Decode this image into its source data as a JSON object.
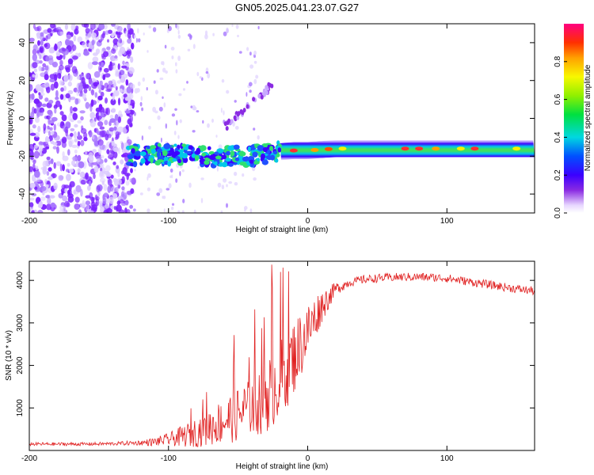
{
  "title": "GN05.2025.041.23.07.G27",
  "colors": {
    "spectrogram_base": "#7b2fff",
    "snr_line": "#e02020",
    "axis": "#000000"
  },
  "chart_data": [
    {
      "type": "heatmap",
      "name": "spectrogram",
      "xlabel": "Height of straight line (km)",
      "ylabel": "Frequency (Hz)",
      "xlim": [
        -200,
        163
      ],
      "ylim": [
        -50,
        50
      ],
      "xticks": [
        -200,
        -100,
        0,
        100
      ],
      "yticks": [
        -40,
        -20,
        0,
        20,
        40
      ],
      "colorbar": {
        "label": "Normalized spectral amplitude",
        "range": [
          0,
          1
        ],
        "ticks": [
          "0.0",
          "0.2",
          "0.4",
          "0.6",
          "0.8"
        ],
        "tick_values": [
          0.0,
          0.2,
          0.4,
          0.6,
          0.8
        ],
        "colormap": "rainbow"
      },
      "band": {
        "x": [
          -130,
          -110,
          -90,
          -70,
          -55,
          -40,
          -25,
          -10,
          0,
          20,
          50,
          80,
          100,
          130,
          163
        ],
        "y": [
          -20,
          -19,
          -19,
          -20,
          -20,
          -20,
          -18,
          -17,
          -17,
          -16,
          -16,
          -16,
          -16,
          -16,
          -16
        ]
      },
      "noise_region_x": [
        -200,
        -125
      ],
      "chirp": {
        "x": [
          -60,
          -25
        ],
        "y": [
          -5,
          18
        ]
      }
    },
    {
      "type": "line",
      "name": "snr",
      "xlabel": "Height of straight line (km)",
      "ylabel": "SNR (10 * v/v)",
      "xlim": [
        -200,
        163
      ],
      "ylim": [
        0,
        4450
      ],
      "xticks": [
        -200,
        -100,
        0,
        100
      ],
      "yticks": [
        1000,
        2000,
        3000,
        4000
      ],
      "series": [
        {
          "x": [
            -200,
            -180,
            -160,
            -140,
            -120,
            -110,
            -100,
            -90,
            -80,
            -70,
            -60,
            -50,
            -40,
            -30,
            -20,
            -10,
            0,
            10,
            20,
            30,
            40,
            50,
            60,
            70,
            80,
            90,
            100,
            110,
            120,
            130,
            140,
            150,
            163
          ],
          "values": [
            150,
            150,
            150,
            160,
            180,
            200,
            260,
            330,
            430,
            560,
            700,
            850,
            1050,
            1300,
            1700,
            2200,
            2800,
            3400,
            3800,
            3950,
            4020,
            4050,
            4070,
            4080,
            4080,
            4070,
            4050,
            4000,
            3950,
            3900,
            3850,
            3800,
            3750
          ],
          "noise_amplitude": [
            40,
            40,
            40,
            40,
            60,
            100,
            150,
            250,
            350,
            450,
            550,
            650,
            750,
            900,
            1000,
            900,
            700,
            400,
            150,
            100,
            100,
            100,
            100,
            100,
            100,
            100,
            100,
            100,
            100,
            100,
            100,
            100,
            100
          ]
        }
      ]
    }
  ]
}
